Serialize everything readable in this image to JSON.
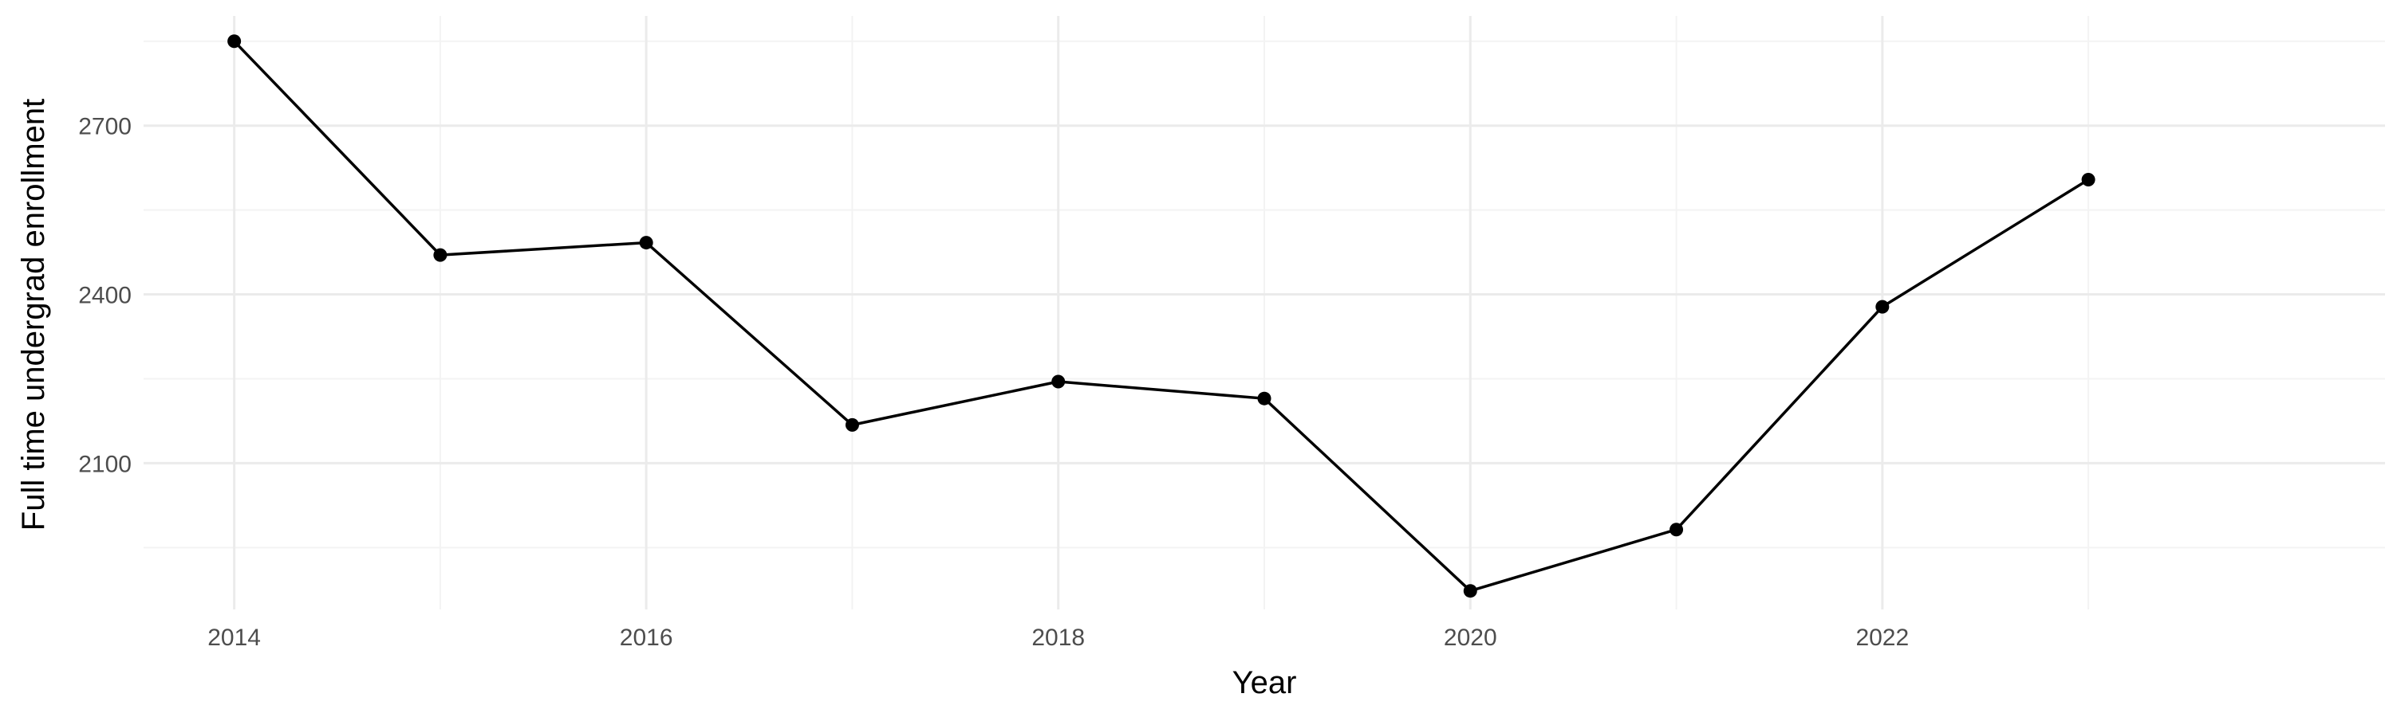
{
  "chart_data": {
    "type": "line",
    "title": "",
    "xlabel": "Year",
    "ylabel": "Full time undergrad enrollment",
    "x": [
      2014,
      2015,
      2016,
      2017,
      2018,
      2019,
      2020,
      2021,
      2022,
      2023
    ],
    "series": [
      {
        "values": [
          2850,
          2470,
          2492,
          2168,
          2245,
          2215,
          1873,
          1982,
          2378,
          2604
        ]
      }
    ],
    "xlim": [
      2013.56,
      2024.44
    ],
    "ylim": [
      1840,
      2895
    ],
    "x_ticks": [
      2014,
      2016,
      2018,
      2020,
      2022
    ],
    "x_tick_labels": [
      "2014",
      "2016",
      "2018",
      "2020",
      "2022"
    ],
    "y_ticks": [
      2100,
      2400,
      2700
    ],
    "y_tick_labels": [
      "2100",
      "2400",
      "2700"
    ],
    "x_minor_ticks": [
      2015,
      2017,
      2019,
      2021,
      2023
    ],
    "y_minor_ticks": [
      1950,
      2250,
      2550,
      2850
    ],
    "grid": true,
    "legend": "none",
    "colors": {
      "line": "#000000",
      "point": "#000000",
      "grid": "#ebebeb",
      "background": "#ffffff"
    }
  }
}
